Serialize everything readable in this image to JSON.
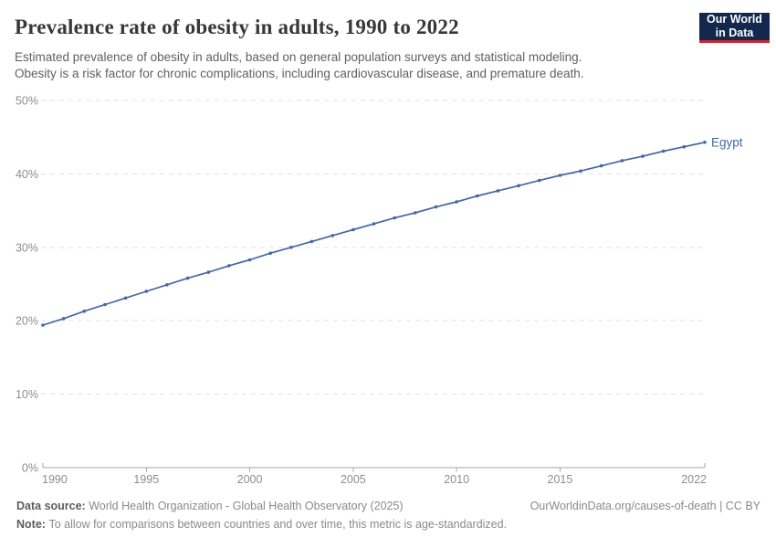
{
  "header": {
    "title": "Prevalence rate of obesity in adults, 1990 to 2022",
    "subtitle_line1": "Estimated prevalence of obesity in adults, based on general population surveys and statistical modeling.",
    "subtitle_line2": "Obesity is a risk factor for chronic complications, including cardiovascular disease, and premature death.",
    "logo": {
      "line1": "Our World",
      "line2": "in Data",
      "bg_color": "#12284c",
      "stripe_color": "#d02733"
    }
  },
  "chart_data": {
    "type": "line",
    "title": "Prevalence rate of obesity in adults, 1990 to 2022",
    "xlabel": "",
    "ylabel": "",
    "xlim": [
      1990,
      2022
    ],
    "ylim": [
      0,
      50
    ],
    "grid": "horizontal-dashed",
    "legend_position": "end-of-line-label",
    "x_ticks": [
      1990,
      1995,
      2000,
      2005,
      2010,
      2015,
      2022
    ],
    "y_ticks": [
      "0%",
      "10%",
      "20%",
      "30%",
      "40%",
      "50%"
    ],
    "y_tick_values": [
      0,
      10,
      20,
      30,
      40,
      50
    ],
    "series": [
      {
        "name": "Egypt",
        "color": "#4567a3",
        "x": [
          1990,
          1991,
          1992,
          1993,
          1994,
          1995,
          1996,
          1997,
          1998,
          1999,
          2000,
          2001,
          2002,
          2003,
          2004,
          2005,
          2006,
          2007,
          2008,
          2009,
          2010,
          2011,
          2012,
          2013,
          2014,
          2015,
          2016,
          2017,
          2018,
          2019,
          2020,
          2021,
          2022
        ],
        "values": [
          19.4,
          20.3,
          21.3,
          22.2,
          23.1,
          24,
          24.9,
          25.8,
          26.6,
          27.5,
          28.3,
          29.2,
          30,
          30.8,
          31.6,
          32.4,
          33.2,
          34,
          34.7,
          35.5,
          36.2,
          37,
          37.7,
          38.4,
          39.1,
          39.8,
          40.4,
          41.1,
          41.8,
          42.4,
          43.1,
          43.7,
          44.3
        ]
      }
    ]
  },
  "colors": {
    "line": "#4567a3",
    "gridline": "#e2e2e2",
    "axis": "#a5a5a5",
    "tick_label": "#8d8d8d"
  },
  "footer": {
    "data_source_label": "Data source:",
    "data_source_text": "World Health Organization - Global Health Observatory (2025)",
    "note_label": "Note:",
    "note_text": "To allow for comparisons between countries and over time, this metric is age-standardized.",
    "link_text": "OurWorldinData.org/causes-of-death | CC BY"
  }
}
